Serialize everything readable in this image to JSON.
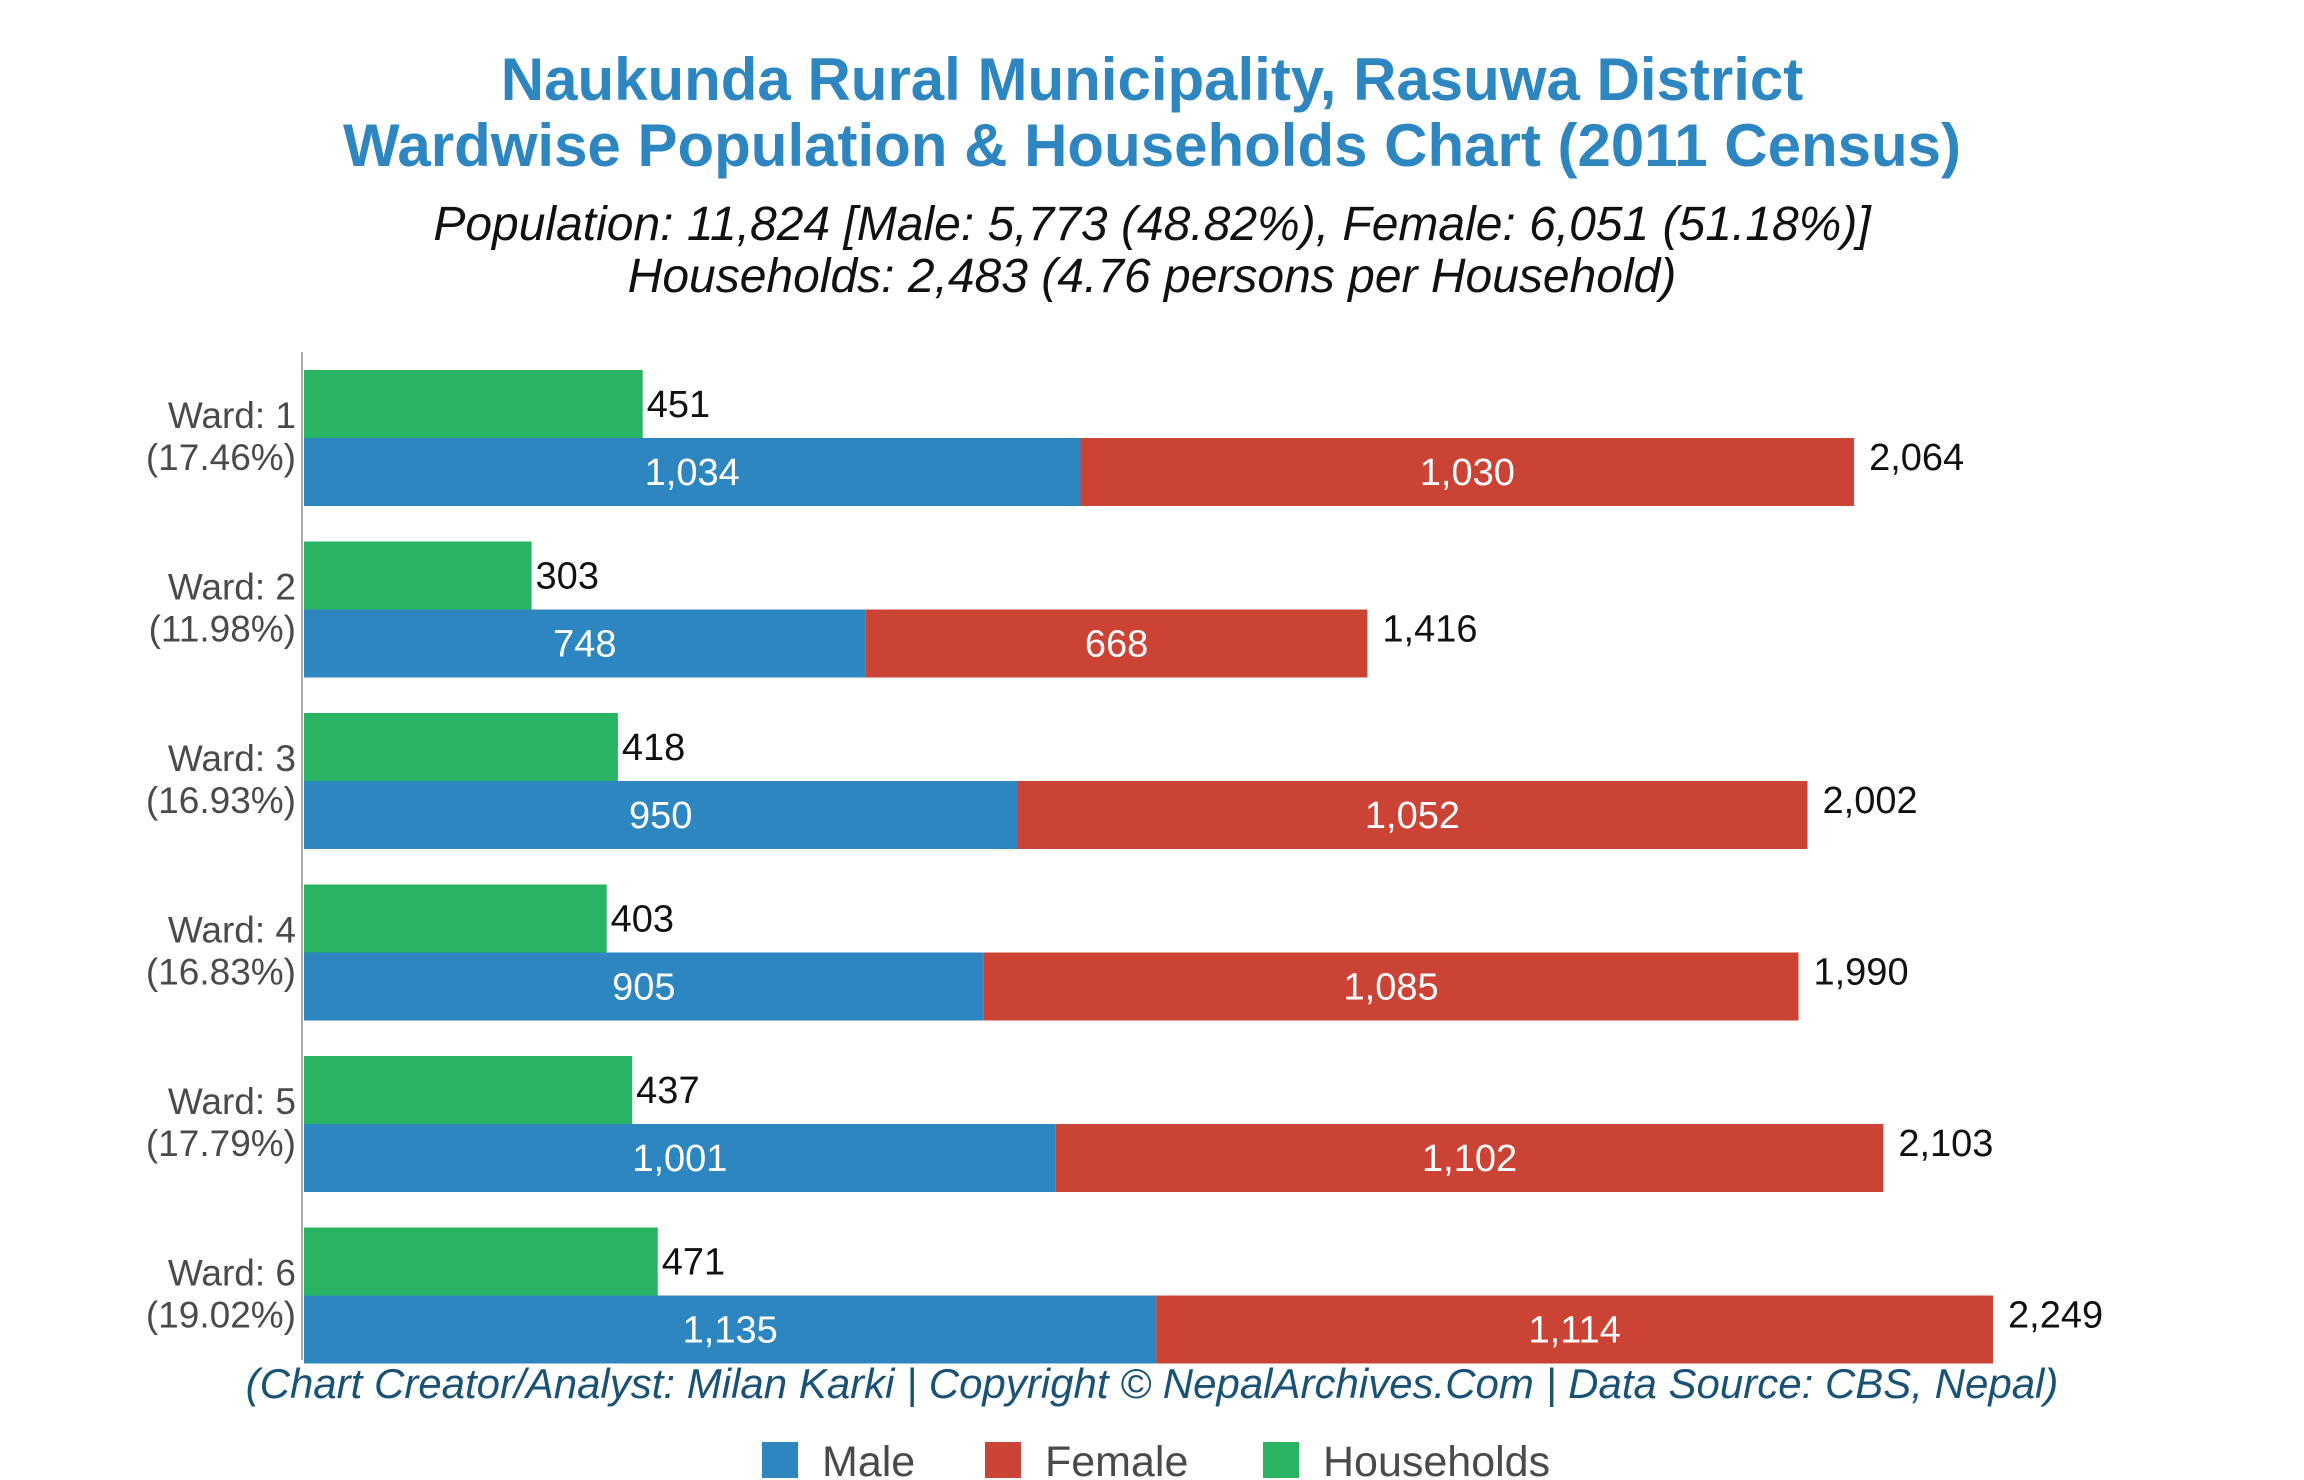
{
  "chart_data": {
    "type": "bar",
    "orientation": "horizontal",
    "title": "Naukunda Rural Municipality, Rasuwa District",
    "title_line2": "Wardwise Population & Households Chart (2011 Census)",
    "subtitle_line1": "Population: 11,824 [Male: 5,773 (48.82%), Female: 6,051 (51.18%)]",
    "subtitle_line2": "Households: 2,483 (4.76 persons per Household)",
    "credit": "(Chart Creator/Analyst: Milan Karki | Copyright © NepalArchives.Com | Data Source: CBS, Nepal)",
    "categories": [
      "Ward: 1",
      "Ward: 2",
      "Ward: 3",
      "Ward: 4",
      "Ward: 5",
      "Ward: 6"
    ],
    "category_shares": [
      "(17.46%)",
      "(11.98%)",
      "(16.93%)",
      "(16.83%)",
      "(17.79%)",
      "(19.02%)"
    ],
    "series": [
      {
        "name": "Male",
        "color": "#2e86c1",
        "values": [
          1034,
          748,
          950,
          905,
          1001,
          1135
        ],
        "labels": [
          "1,034",
          "748",
          "950",
          "905",
          "1,001",
          "1,135"
        ]
      },
      {
        "name": "Female",
        "color": "#cb4335",
        "values": [
          1030,
          668,
          1052,
          1085,
          1102,
          1114
        ],
        "labels": [
          "1,030",
          "668",
          "1,052",
          "1,085",
          "1,102",
          "1,114"
        ]
      },
      {
        "name": "Households",
        "color": "#28b463",
        "values": [
          451,
          303,
          418,
          403,
          437,
          471
        ],
        "labels": [
          "451",
          "303",
          "418",
          "403",
          "437",
          "471"
        ]
      }
    ],
    "totals": [
      2064,
      1416,
      2002,
      1990,
      2103,
      2249
    ],
    "total_labels": [
      "2,064",
      "1,416",
      "2,002",
      "1,990",
      "2,103",
      "2,249"
    ],
    "stacked_series": [
      "Male",
      "Female"
    ],
    "grid": false,
    "legend_position": "bottom",
    "xlim": [
      0,
      2249
    ]
  },
  "colors": {
    "title": "#2e86c1",
    "credit": "#1a5276",
    "axis_line": "#aaaaaa"
  }
}
